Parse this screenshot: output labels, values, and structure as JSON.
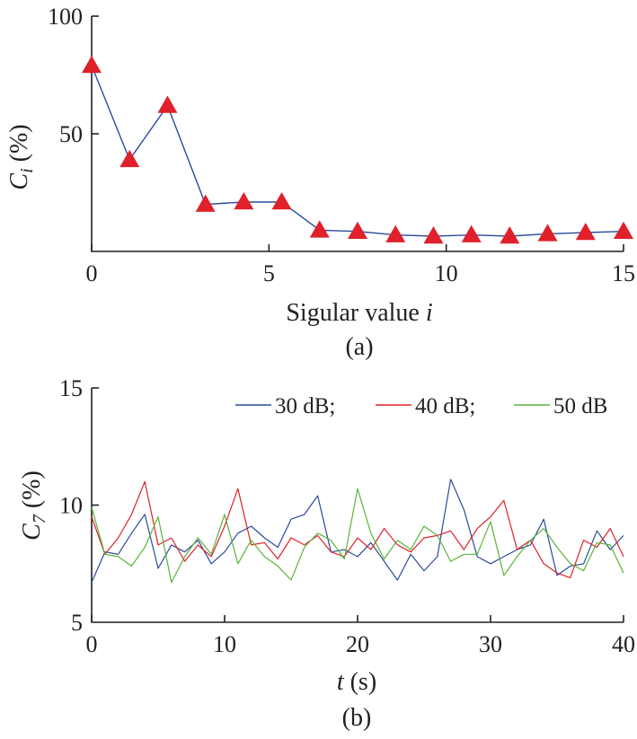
{
  "chart_data": [
    {
      "type": "line",
      "panel_label": "(a)",
      "xlabel_text": "Sigular value ",
      "xlabel_var": "i",
      "ylabel_var": "C",
      "ylabel_sub": "i",
      "ylabel_unit": " (%)",
      "xlim": [
        0,
        15
      ],
      "ylim": [
        0,
        100
      ],
      "xticks": [
        0,
        5,
        10,
        15
      ],
      "yticks": [
        50,
        100
      ],
      "marker": "triangle",
      "line_color": "#2b4b9b",
      "marker_color": "#e0202a",
      "series": [
        {
          "x": [
            0,
            1.07,
            2.14,
            3.21,
            4.29,
            5.36,
            6.43,
            7.5,
            8.57,
            9.64,
            10.71,
            11.79,
            12.86,
            13.93,
            15
          ],
          "values": [
            79,
            39,
            62,
            20,
            21,
            21,
            9,
            8.5,
            7,
            6.5,
            7,
            6.5,
            7.5,
            8,
            8.5
          ]
        }
      ]
    },
    {
      "type": "line",
      "panel_label": "(b)",
      "xlabel_var": "t",
      "xlabel_unit": " (s)",
      "ylabel_var": "C",
      "ylabel_sub": "7",
      "ylabel_unit": " (%)",
      "xlim": [
        0,
        40
      ],
      "ylim": [
        5,
        15
      ],
      "xticks": [
        0,
        10,
        20,
        30,
        40
      ],
      "yticks": [
        5,
        10,
        15
      ],
      "legend": "top-right",
      "series": [
        {
          "name": "30 dB;",
          "color": "#2b4b9b",
          "x": [
            0,
            1,
            2,
            3,
            4,
            5,
            6,
            7,
            8,
            9,
            10,
            11,
            12,
            13,
            14,
            15,
            16,
            17,
            18,
            19,
            20,
            21,
            22,
            23,
            24,
            25,
            26,
            27,
            28,
            29,
            30,
            31,
            32,
            33,
            34,
            35,
            36,
            37,
            38,
            39,
            40
          ],
          "values": [
            6.7,
            8.0,
            7.9,
            8.8,
            9.6,
            7.3,
            8.3,
            8.0,
            8.5,
            7.5,
            8.0,
            8.8,
            9.1,
            8.6,
            8.2,
            9.4,
            9.6,
            10.4,
            8.0,
            8.1,
            7.8,
            8.4,
            7.6,
            6.8,
            7.9,
            7.2,
            7.8,
            11.1,
            9.8,
            7.8,
            7.5,
            7.8,
            8.1,
            8.3,
            9.4,
            7.0,
            7.4,
            7.5,
            8.9,
            8.1,
            8.7
          ]
        },
        {
          "name": "40 dB;",
          "color": "#e0202a",
          "x": [
            0,
            1,
            2,
            3,
            4,
            5,
            6,
            7,
            8,
            9,
            10,
            11,
            12,
            13,
            14,
            15,
            16,
            17,
            18,
            19,
            20,
            21,
            22,
            23,
            24,
            25,
            26,
            27,
            28,
            29,
            30,
            31,
            32,
            33,
            34,
            35,
            36,
            37,
            38,
            39,
            40
          ],
          "values": [
            9.5,
            7.9,
            8.6,
            9.6,
            11.0,
            8.3,
            8.6,
            7.6,
            8.3,
            7.8,
            9.1,
            10.7,
            8.3,
            8.4,
            7.7,
            8.6,
            8.3,
            8.7,
            8.0,
            7.8,
            8.6,
            8.1,
            9.0,
            8.3,
            8.0,
            8.6,
            8.7,
            8.9,
            8.1,
            9.0,
            9.5,
            10.2,
            8.1,
            8.5,
            7.5,
            7.1,
            6.9,
            8.5,
            8.2,
            9.0,
            7.8
          ]
        },
        {
          "name": "50 dB",
          "color": "#5ab43a",
          "x": [
            0,
            1,
            2,
            3,
            4,
            5,
            6,
            7,
            8,
            9,
            10,
            11,
            12,
            13,
            14,
            15,
            16,
            17,
            18,
            19,
            20,
            21,
            22,
            23,
            24,
            25,
            26,
            27,
            28,
            29,
            30,
            31,
            32,
            33,
            34,
            35,
            36,
            37,
            38,
            39,
            40
          ],
          "values": [
            9.9,
            7.9,
            7.8,
            7.4,
            8.2,
            9.5,
            6.7,
            7.8,
            8.6,
            7.9,
            9.6,
            7.5,
            8.5,
            7.8,
            7.4,
            6.8,
            8.2,
            8.8,
            8.5,
            7.7,
            10.7,
            8.8,
            7.7,
            8.5,
            8.1,
            9.1,
            8.7,
            7.6,
            7.9,
            7.9,
            9.3,
            7.0,
            7.8,
            8.5,
            9.0,
            8.2,
            7.5,
            7.2,
            8.4,
            8.3,
            7.1
          ]
        }
      ]
    }
  ]
}
